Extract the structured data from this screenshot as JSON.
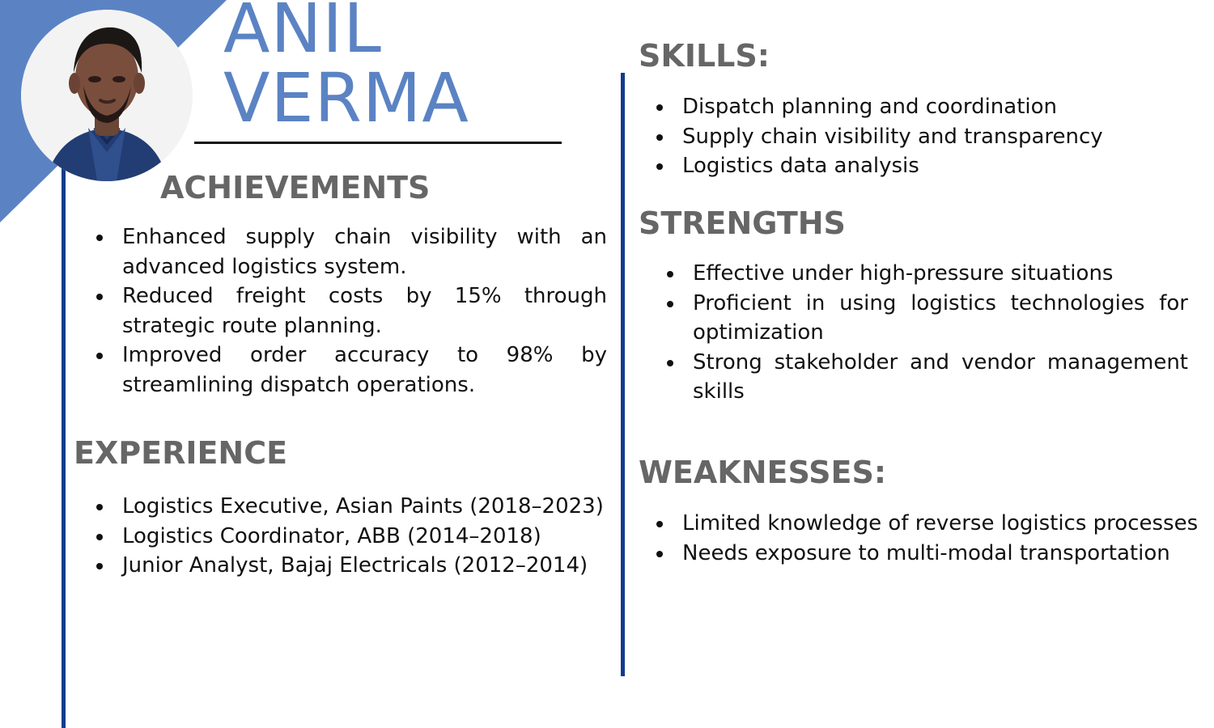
{
  "profile": {
    "first_name": "ANIL",
    "last_name": "VERMA"
  },
  "colors": {
    "accent_blue": "#5b83c4",
    "rule_navy": "#123b8c",
    "heading_gray": "#666666",
    "text": "#111111"
  },
  "achievements": {
    "title": "ACHIEVEMENTS",
    "items": [
      "Enhanced supply chain visibility with an advanced logistics system.",
      "Reduced freight costs by 15% through strategic route planning.",
      "Improved order accuracy to 98% by streamlining dispatch operations."
    ]
  },
  "experience": {
    "title": "EXPERIENCE",
    "items": [
      "Logistics Executive, Asian Paints (2018–2023)",
      "Logistics Coordinator, ABB (2014–2018)",
      "Junior Analyst, Bajaj Electricals (2012–2014)"
    ]
  },
  "skills": {
    "title": "SKILLS:",
    "items": [
      "Dispatch planning and coordination",
      "Supply chain visibility and transparency",
      "Logistics data analysis"
    ]
  },
  "strengths": {
    "title": "STRENGTHS",
    "items": [
      "Effective under high-pressure situations",
      "Proficient in using logistics technologies for optimization",
      "Strong stakeholder and vendor management skills"
    ]
  },
  "weaknesses": {
    "title": "WEAKNESSES:",
    "items": [
      "Limited knowledge of reverse logistics processes",
      "Needs exposure to multi-modal transportation"
    ]
  }
}
